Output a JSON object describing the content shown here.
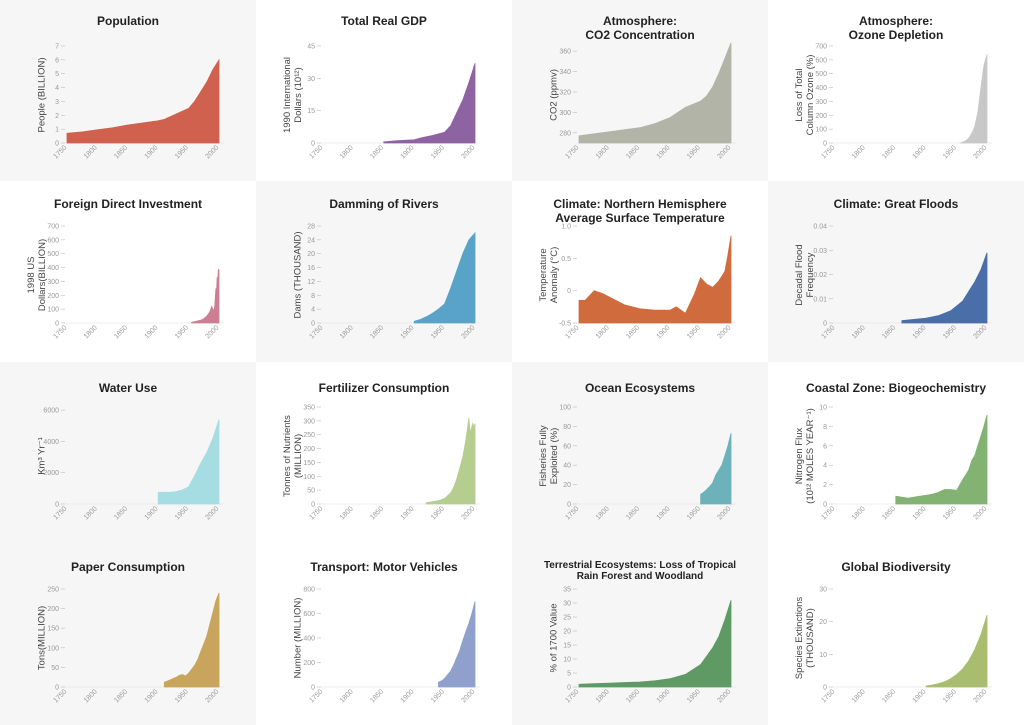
{
  "panels": [
    {
      "title_lines": [
        "Population"
      ],
      "ylabel_lines": [
        "People (BILLION)"
      ],
      "color": "#d0614f",
      "bg": "#f6f6f7",
      "chart_data": {
        "type": "area",
        "x_ticks": [
          "1750",
          "1800",
          "1850",
          "1900",
          "1950",
          "2000"
        ],
        "y_ticks": [
          "0",
          "1",
          "2",
          "3",
          "4",
          "5",
          "6",
          "7"
        ],
        "ylim": [
          0,
          7
        ],
        "x": [
          1750,
          1775,
          1800,
          1825,
          1850,
          1875,
          1900,
          1910,
          1925,
          1950,
          1960,
          1970,
          1980,
          1990,
          2000
        ],
        "values": [
          0.7,
          0.8,
          0.95,
          1.1,
          1.3,
          1.45,
          1.6,
          1.7,
          2.0,
          2.5,
          3.0,
          3.7,
          4.4,
          5.3,
          6.0
        ]
      }
    },
    {
      "title_lines": [
        "Total Real GDP"
      ],
      "ylabel_lines": [
        "1990 International",
        "Dollars (10¹²)"
      ],
      "color": "#8e63a1",
      "bg": "#ffffff",
      "chart_data": {
        "type": "area",
        "x_ticks": [
          "1750",
          "1800",
          "1850",
          "1900",
          "1950",
          "2000"
        ],
        "y_ticks": [
          "0",
          "15",
          "30",
          "45"
        ],
        "ylim": [
          0,
          45
        ],
        "x": [
          1850,
          1870,
          1900,
          1913,
          1930,
          1950,
          1960,
          1970,
          1980,
          1990,
          2000
        ],
        "values": [
          0.5,
          1.0,
          1.5,
          2.5,
          3.5,
          5.0,
          8.0,
          14.0,
          20.0,
          28.0,
          37.0
        ]
      }
    },
    {
      "title_lines": [
        "Atmosphere:",
        "CO2 Concentration"
      ],
      "ylabel_lines": [
        "CO2 (ppmv)"
      ],
      "color": "#b3b4a8",
      "bg": "#f6f6f7",
      "chart_data": {
        "type": "area",
        "x_ticks": [
          "1750",
          "1800",
          "1850",
          "1900",
          "1950",
          "2000"
        ],
        "y_ticks": [
          "280",
          "300",
          "320",
          "340",
          "360"
        ],
        "ylim": [
          270,
          365
        ],
        "x": [
          1750,
          1775,
          1800,
          1825,
          1850,
          1875,
          1900,
          1925,
          1950,
          1960,
          1970,
          1980,
          1990,
          2000
        ],
        "values": [
          277,
          279,
          281,
          283,
          285,
          289,
          295,
          305,
          311,
          316,
          325,
          338,
          353,
          368
        ]
      }
    },
    {
      "title_lines": [
        "Atmosphere:",
        "Ozone Depletion"
      ],
      "ylabel_lines": [
        "Loss of Total",
        "Column Ozone (%)"
      ],
      "color": "#c8c8c8",
      "bg": "#ffffff",
      "chart_data": {
        "type": "area",
        "x_ticks": [
          "1750",
          "1800",
          "1850",
          "1900",
          "1950",
          "2000"
        ],
        "y_ticks": [
          "0",
          "100",
          "200",
          "300",
          "400",
          "500",
          "600",
          "700"
        ],
        "ylim": [
          0,
          700
        ],
        "x": [
          1955,
          1960,
          1965,
          1970,
          1975,
          1980,
          1985,
          1990,
          1995,
          2000
        ],
        "values": [
          0,
          5,
          15,
          35,
          70,
          120,
          220,
          400,
          560,
          640
        ]
      }
    },
    {
      "title_lines": [
        "Foreign Direct Investment"
      ],
      "ylabel_lines": [
        "1998 US",
        "Dollars(BILLION)"
      ],
      "color": "#cc7f92",
      "bg": "#ffffff",
      "chart_data": {
        "type": "area",
        "x_ticks": [
          "1750",
          "1800",
          "1850",
          "1900",
          "1950",
          "2000"
        ],
        "y_ticks": [
          "0",
          "100",
          "200",
          "300",
          "400",
          "500",
          "600",
          "700"
        ],
        "ylim": [
          0,
          700
        ],
        "x": [
          1955,
          1960,
          1965,
          1970,
          1975,
          1980,
          1985,
          1988,
          1990,
          1991,
          1993,
          1995,
          1996,
          1997,
          1998,
          1999,
          2000
        ],
        "values": [
          5,
          10,
          15,
          20,
          30,
          50,
          80,
          120,
          100,
          80,
          120,
          250,
          220,
          330,
          300,
          390,
          380
        ]
      }
    },
    {
      "title_lines": [
        "Damming of Rivers"
      ],
      "ylabel_lines": [
        "Dams (THOUSAND)"
      ],
      "color": "#5aa3c8",
      "bg": "#f6f6f7",
      "chart_data": {
        "type": "area",
        "x_ticks": [
          "1750",
          "1800",
          "1850",
          "1900",
          "1950",
          "2000"
        ],
        "y_ticks": [
          "0",
          "4",
          "8",
          "12",
          "16",
          "20",
          "24",
          "28"
        ],
        "ylim": [
          0,
          28
        ],
        "x": [
          1900,
          1910,
          1920,
          1930,
          1940,
          1950,
          1960,
          1970,
          1980,
          1990,
          2000
        ],
        "values": [
          0.5,
          1.0,
          1.8,
          2.8,
          4.0,
          5.5,
          10.0,
          15.0,
          20.0,
          24.0,
          26.0
        ]
      }
    },
    {
      "title_lines": [
        "Climate: Northern Hemisphere",
        "Average Surface Temperature"
      ],
      "ylabel_lines": [
        "Temperature",
        "Anomaly (°C)"
      ],
      "color": "#d06b3d",
      "bg": "#ffffff",
      "chart_data": {
        "type": "area",
        "x_ticks": [
          "1750",
          "1800",
          "1850",
          "1900",
          "1950",
          "2000"
        ],
        "y_ticks": [
          "-0.5",
          "0",
          "0.5",
          "1.0"
        ],
        "ylim": [
          -0.5,
          1.0
        ],
        "x": [
          1750,
          1760,
          1775,
          1790,
          1800,
          1825,
          1850,
          1875,
          1900,
          1910,
          1925,
          1940,
          1950,
          1960,
          1970,
          1980,
          1990,
          1995,
          2000
        ],
        "values": [
          -0.15,
          -0.15,
          0.0,
          -0.05,
          -0.1,
          -0.22,
          -0.28,
          -0.3,
          -0.3,
          -0.25,
          -0.35,
          -0.05,
          0.2,
          0.1,
          0.05,
          0.15,
          0.3,
          0.55,
          0.85
        ]
      }
    },
    {
      "title_lines": [
        "Climate: Great Floods"
      ],
      "ylabel_lines": [
        "Decadal Flood",
        "Frequency"
      ],
      "color": "#4a6ea7",
      "bg": "#f6f6f7",
      "chart_data": {
        "type": "area",
        "x_ticks": [
          "1750",
          "1800",
          "1850",
          "1900",
          "1950",
          "2000"
        ],
        "y_ticks": [
          "0",
          "0.01",
          "0.02",
          "0.03",
          "0.04"
        ],
        "ylim": [
          0,
          0.04
        ],
        "x": [
          1860,
          1880,
          1900,
          1920,
          1940,
          1950,
          1960,
          1970,
          1980,
          1990,
          2000
        ],
        "values": [
          0.001,
          0.0015,
          0.002,
          0.003,
          0.005,
          0.007,
          0.009,
          0.013,
          0.017,
          0.022,
          0.029
        ]
      }
    },
    {
      "title_lines": [
        "Water Use"
      ],
      "ylabel_lines": [
        "Km³ Yr⁻¹"
      ],
      "color": "#a6dde2",
      "bg": "#f6f6f7",
      "chart_data": {
        "type": "area",
        "x_ticks": [
          "1750",
          "1800",
          "1850",
          "1900",
          "1950",
          "2000"
        ],
        "y_ticks": [
          "0",
          "2000",
          "4000",
          "6000"
        ],
        "ylim": [
          0,
          6200
        ],
        "x": [
          1900,
          1910,
          1920,
          1930,
          1940,
          1950,
          1960,
          1970,
          1980,
          1990,
          2000
        ],
        "values": [
          750,
          750,
          750,
          800,
          900,
          1100,
          1800,
          2600,
          3300,
          4200,
          5400
        ]
      }
    },
    {
      "title_lines": [
        "Fertilizer Consumption"
      ],
      "ylabel_lines": [
        "Tonnes of Nutrients",
        "(MILLION)"
      ],
      "color": "#b5cd8f",
      "bg": "#ffffff",
      "chart_data": {
        "type": "area",
        "x_ticks": [
          "1750",
          "1800",
          "1850",
          "1900",
          "1950",
          "2000"
        ],
        "y_ticks": [
          "0",
          "50",
          "100",
          "150",
          "200",
          "250",
          "300",
          "350"
        ],
        "ylim": [
          0,
          350
        ],
        "x": [
          1920,
          1930,
          1940,
          1950,
          1955,
          1960,
          1965,
          1970,
          1975,
          1980,
          1985,
          1988,
          1990,
          1992,
          1994,
          1996,
          1998,
          2000
        ],
        "values": [
          5,
          8,
          12,
          20,
          30,
          40,
          60,
          90,
          130,
          170,
          230,
          280,
          310,
          260,
          270,
          290,
          280,
          290
        ]
      }
    },
    {
      "title_lines": [
        "Ocean Ecosystems"
      ],
      "ylabel_lines": [
        "Fisheries Fully",
        "Exploited (%)"
      ],
      "color": "#6db2bb",
      "bg": "#f6f6f7",
      "chart_data": {
        "type": "area",
        "x_ticks": [
          "1750",
          "1800",
          "1850",
          "1900",
          "1950",
          "2000"
        ],
        "y_ticks": [
          "0",
          "20",
          "40",
          "60",
          "80",
          "100"
        ],
        "ylim": [
          0,
          100
        ],
        "x": [
          1950,
          1955,
          1960,
          1965,
          1970,
          1975,
          1980,
          1985,
          1990,
          1995,
          2000
        ],
        "values": [
          10,
          12,
          15,
          18,
          22,
          30,
          35,
          40,
          50,
          60,
          73
        ]
      }
    },
    {
      "title_lines": [
        "Coastal Zone: Biogeochemistry"
      ],
      "ylabel_lines": [
        "Nitrogen Flux",
        "(10¹² MOLES YEAR⁻¹)"
      ],
      "color": "#82b373",
      "bg": "#ffffff",
      "chart_data": {
        "type": "area",
        "x_ticks": [
          "1750",
          "1800",
          "1850",
          "1900",
          "1950",
          "2000"
        ],
        "y_ticks": [
          "0",
          "2",
          "4",
          "6",
          "8",
          "10"
        ],
        "ylim": [
          0,
          10
        ],
        "x": [
          1850,
          1860,
          1870,
          1880,
          1890,
          1900,
          1910,
          1920,
          1930,
          1940,
          1950,
          1960,
          1970,
          1975,
          1980,
          1985,
          1990,
          1995,
          2000
        ],
        "values": [
          0.8,
          0.7,
          0.6,
          0.7,
          0.8,
          0.9,
          1.0,
          1.2,
          1.5,
          1.5,
          1.4,
          2.5,
          3.5,
          4.5,
          5.0,
          6.0,
          7.0,
          8.0,
          9.2
        ]
      }
    },
    {
      "title_lines": [
        "Paper Consumption"
      ],
      "ylabel_lines": [
        "Tons(MILLION)"
      ],
      "color": "#c9a45c",
      "bg": "#f6f6f7",
      "chart_data": {
        "type": "area",
        "x_ticks": [
          "1750",
          "1800",
          "1850",
          "1900",
          "1950",
          "2000"
        ],
        "y_ticks": [
          "0",
          "50",
          "100",
          "150",
          "200",
          "250"
        ],
        "ylim": [
          0,
          250
        ],
        "x": [
          1910,
          1915,
          1920,
          1925,
          1930,
          1935,
          1940,
          1945,
          1950,
          1955,
          1960,
          1965,
          1970,
          1975,
          1980,
          1985,
          1990,
          1995,
          2000
        ],
        "values": [
          12,
          15,
          18,
          22,
          25,
          30,
          32,
          28,
          35,
          45,
          55,
          70,
          90,
          110,
          130,
          160,
          190,
          220,
          240
        ]
      }
    },
    {
      "title_lines": [
        "Transport: Motor Vehicles"
      ],
      "ylabel_lines": [
        "Number (MILLION)"
      ],
      "color": "#8fa0cd",
      "bg": "#ffffff",
      "chart_data": {
        "type": "area",
        "x_ticks": [
          "1750",
          "1800",
          "1850",
          "1900",
          "1950",
          "2000"
        ],
        "y_ticks": [
          "0",
          "200",
          "400",
          "600",
          "800"
        ],
        "ylim": [
          0,
          800
        ],
        "x": [
          1940,
          1945,
          1950,
          1955,
          1960,
          1965,
          1970,
          1975,
          1980,
          1985,
          1990,
          1995,
          2000
        ],
        "values": [
          40,
          50,
          70,
          100,
          130,
          180,
          240,
          300,
          380,
          450,
          520,
          600,
          700
        ]
      }
    },
    {
      "title_lines": [
        "Terrestrial Ecosystems: Loss of Tropical",
        "Rain Forest and Woodland"
      ],
      "ylabel_lines": [
        "% of 1700 Value"
      ],
      "color": "#5f9a64",
      "bg": "#f6f6f7",
      "chart_data": {
        "type": "area",
        "x_ticks": [
          "1750",
          "1800",
          "1850",
          "1900",
          "1950",
          "2000"
        ],
        "y_ticks": [
          "0",
          "5",
          "10",
          "15",
          "20",
          "25",
          "30",
          "35"
        ],
        "ylim": [
          0,
          35
        ],
        "x": [
          1750,
          1775,
          1800,
          1825,
          1850,
          1875,
          1900,
          1925,
          1950,
          1960,
          1970,
          1980,
          1990,
          2000
        ],
        "values": [
          1.0,
          1.2,
          1.4,
          1.6,
          1.8,
          2.2,
          3.0,
          4.5,
          8.0,
          11.0,
          14.0,
          18.0,
          24.0,
          31.0
        ]
      }
    },
    {
      "title_lines": [
        "Global Biodiversity"
      ],
      "ylabel_lines": [
        "Species Extinctions",
        "(THOUSAND)"
      ],
      "color": "#a9bd6f",
      "bg": "#ffffff",
      "chart_data": {
        "type": "area",
        "x_ticks": [
          "1750",
          "1800",
          "1850",
          "1900",
          "1950",
          "2000"
        ],
        "y_ticks": [
          "0",
          "10",
          "20",
          "30"
        ],
        "ylim": [
          0,
          30
        ],
        "x": [
          1900,
          1910,
          1920,
          1930,
          1940,
          1950,
          1960,
          1970,
          1980,
          1990,
          2000
        ],
        "values": [
          0.3,
          0.6,
          1.0,
          1.6,
          2.5,
          3.8,
          5.5,
          8.0,
          11.5,
          16.0,
          22.0
        ]
      }
    }
  ]
}
